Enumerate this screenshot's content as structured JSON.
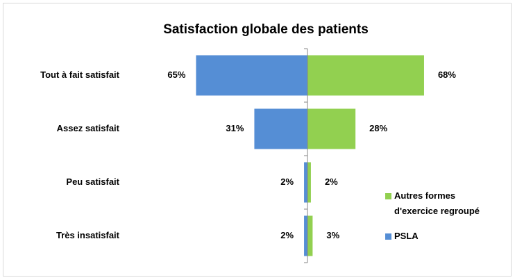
{
  "chart_data": {
    "type": "butterfly",
    "title": "Satisfaction globale des patients",
    "categories": [
      "Tout à fait satisfait",
      "Assez satisfait",
      "Peu satisfait",
      "Très insatisfait"
    ],
    "series": [
      {
        "name": "PSLA",
        "color": "#558ed5",
        "side": "left",
        "values": [
          65,
          31,
          2,
          2
        ],
        "value_labels": [
          "65%",
          "31%",
          "2%",
          "2%"
        ]
      },
      {
        "name": "Autres formes d'exercice regroupé",
        "color": "#92d050",
        "side": "right",
        "values": [
          68,
          28,
          2,
          3
        ],
        "value_labels": [
          "68%",
          "28%",
          "2%",
          "3%"
        ]
      }
    ]
  }
}
